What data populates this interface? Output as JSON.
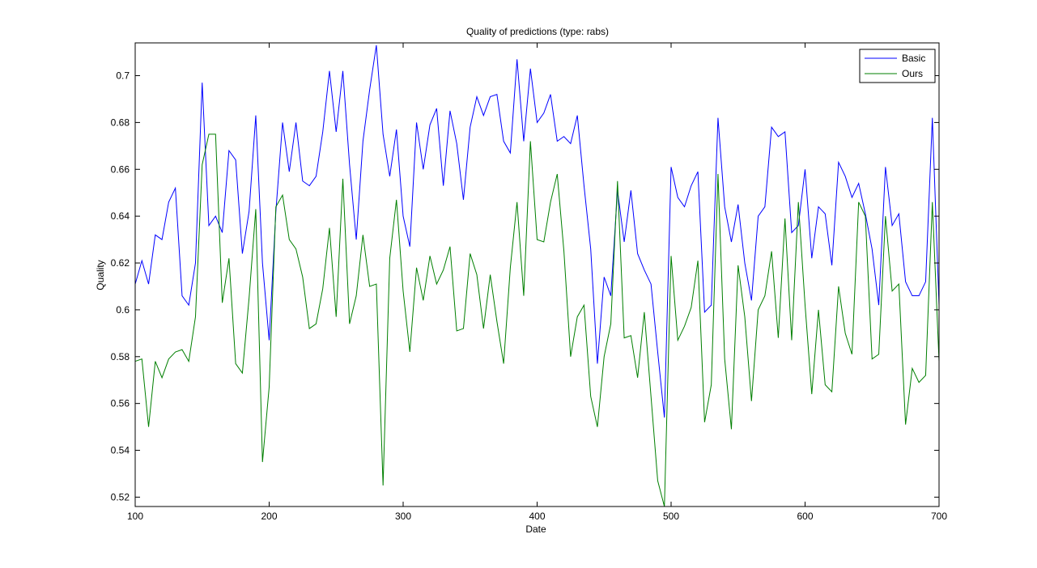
{
  "chart_data": {
    "type": "line",
    "title": "Quality of predictions (type: rabs)",
    "xlabel": "Date",
    "ylabel": "Quality",
    "xlim": [
      100,
      700
    ],
    "ylim": [
      0.516,
      0.714
    ],
    "xticks": [
      100,
      200,
      300,
      400,
      500,
      600,
      700
    ],
    "xtick_labels": [
      "100",
      "200",
      "300",
      "400",
      "500",
      "600",
      "700"
    ],
    "yticks": [
      0.52,
      0.54,
      0.56,
      0.58,
      0.6,
      0.62,
      0.64,
      0.66,
      0.68,
      0.7
    ],
    "ytick_labels": [
      "0.52",
      "0.54",
      "0.56",
      "0.58",
      "0.6",
      "0.62",
      "0.64",
      "0.66",
      "0.68",
      "0.7"
    ],
    "grid": false,
    "legend_position": "top-right",
    "x": [
      100,
      105,
      110,
      115,
      120,
      125,
      130,
      135,
      140,
      145,
      150,
      155,
      160,
      165,
      170,
      175,
      180,
      185,
      190,
      195,
      200,
      205,
      210,
      215,
      220,
      225,
      230,
      235,
      240,
      245,
      250,
      255,
      260,
      265,
      270,
      275,
      280,
      285,
      290,
      295,
      300,
      305,
      310,
      315,
      320,
      325,
      330,
      335,
      340,
      345,
      350,
      355,
      360,
      365,
      370,
      375,
      380,
      385,
      390,
      395,
      400,
      405,
      410,
      415,
      420,
      425,
      430,
      435,
      440,
      445,
      450,
      455,
      460,
      465,
      470,
      475,
      480,
      485,
      490,
      495,
      500,
      505,
      510,
      515,
      520,
      525,
      530,
      535,
      540,
      545,
      550,
      555,
      560,
      565,
      570,
      575,
      580,
      585,
      590,
      595,
      600,
      605,
      610,
      615,
      620,
      625,
      630,
      635,
      640,
      645,
      650,
      655,
      660,
      665,
      670,
      675,
      680,
      685,
      690,
      695,
      700
    ],
    "series": [
      {
        "name": "Basic",
        "color": "#0000ff",
        "values": [
          0.611,
          0.621,
          0.611,
          0.632,
          0.63,
          0.646,
          0.652,
          0.606,
          0.602,
          0.62,
          0.697,
          0.636,
          0.64,
          0.633,
          0.668,
          0.664,
          0.624,
          0.642,
          0.683,
          0.62,
          0.587,
          0.642,
          0.68,
          0.659,
          0.68,
          0.655,
          0.653,
          0.657,
          0.676,
          0.702,
          0.676,
          0.702,
          0.662,
          0.63,
          0.672,
          0.694,
          0.713,
          0.675,
          0.657,
          0.677,
          0.64,
          0.627,
          0.68,
          0.66,
          0.679,
          0.686,
          0.653,
          0.685,
          0.671,
          0.647,
          0.678,
          0.691,
          0.683,
          0.691,
          0.692,
          0.672,
          0.667,
          0.707,
          0.672,
          0.703,
          0.68,
          0.684,
          0.692,
          0.672,
          0.674,
          0.671,
          0.683,
          0.653,
          0.626,
          0.577,
          0.614,
          0.606,
          0.651,
          0.629,
          0.651,
          0.624,
          0.617,
          0.611,
          0.582,
          0.554,
          0.661,
          0.648,
          0.644,
          0.653,
          0.659,
          0.599,
          0.602,
          0.682,
          0.644,
          0.629,
          0.645,
          0.62,
          0.604,
          0.64,
          0.644,
          0.678,
          0.674,
          0.676,
          0.633,
          0.636,
          0.66,
          0.622,
          0.644,
          0.641,
          0.619,
          0.663,
          0.657,
          0.648,
          0.654,
          0.641,
          0.626,
          0.602,
          0.661,
          0.636,
          0.641,
          0.612,
          0.606,
          0.606,
          0.612,
          0.682,
          0.602
        ]
      },
      {
        "name": "Ours",
        "color": "#007f00",
        "values": [
          0.578,
          0.579,
          0.55,
          0.578,
          0.571,
          0.579,
          0.582,
          0.583,
          0.578,
          0.597,
          0.662,
          0.675,
          0.675,
          0.603,
          0.622,
          0.577,
          0.573,
          0.605,
          0.643,
          0.535,
          0.567,
          0.644,
          0.649,
          0.63,
          0.626,
          0.614,
          0.592,
          0.594,
          0.609,
          0.635,
          0.597,
          0.656,
          0.594,
          0.606,
          0.632,
          0.61,
          0.611,
          0.525,
          0.622,
          0.647,
          0.608,
          0.582,
          0.618,
          0.604,
          0.623,
          0.611,
          0.617,
          0.627,
          0.591,
          0.592,
          0.624,
          0.615,
          0.592,
          0.615,
          0.595,
          0.577,
          0.618,
          0.646,
          0.606,
          0.672,
          0.63,
          0.629,
          0.646,
          0.658,
          0.625,
          0.58,
          0.597,
          0.602,
          0.563,
          0.55,
          0.58,
          0.594,
          0.655,
          0.588,
          0.589,
          0.571,
          0.599,
          0.563,
          0.527,
          0.516,
          0.623,
          0.587,
          0.593,
          0.601,
          0.621,
          0.552,
          0.568,
          0.658,
          0.579,
          0.549,
          0.619,
          0.597,
          0.561,
          0.6,
          0.606,
          0.625,
          0.588,
          0.639,
          0.587,
          0.646,
          0.602,
          0.564,
          0.6,
          0.568,
          0.565,
          0.61,
          0.59,
          0.581,
          0.646,
          0.64,
          0.579,
          0.581,
          0.64,
          0.608,
          0.611,
          0.551,
          0.575,
          0.569,
          0.572,
          0.646,
          0.578
        ]
      }
    ]
  }
}
